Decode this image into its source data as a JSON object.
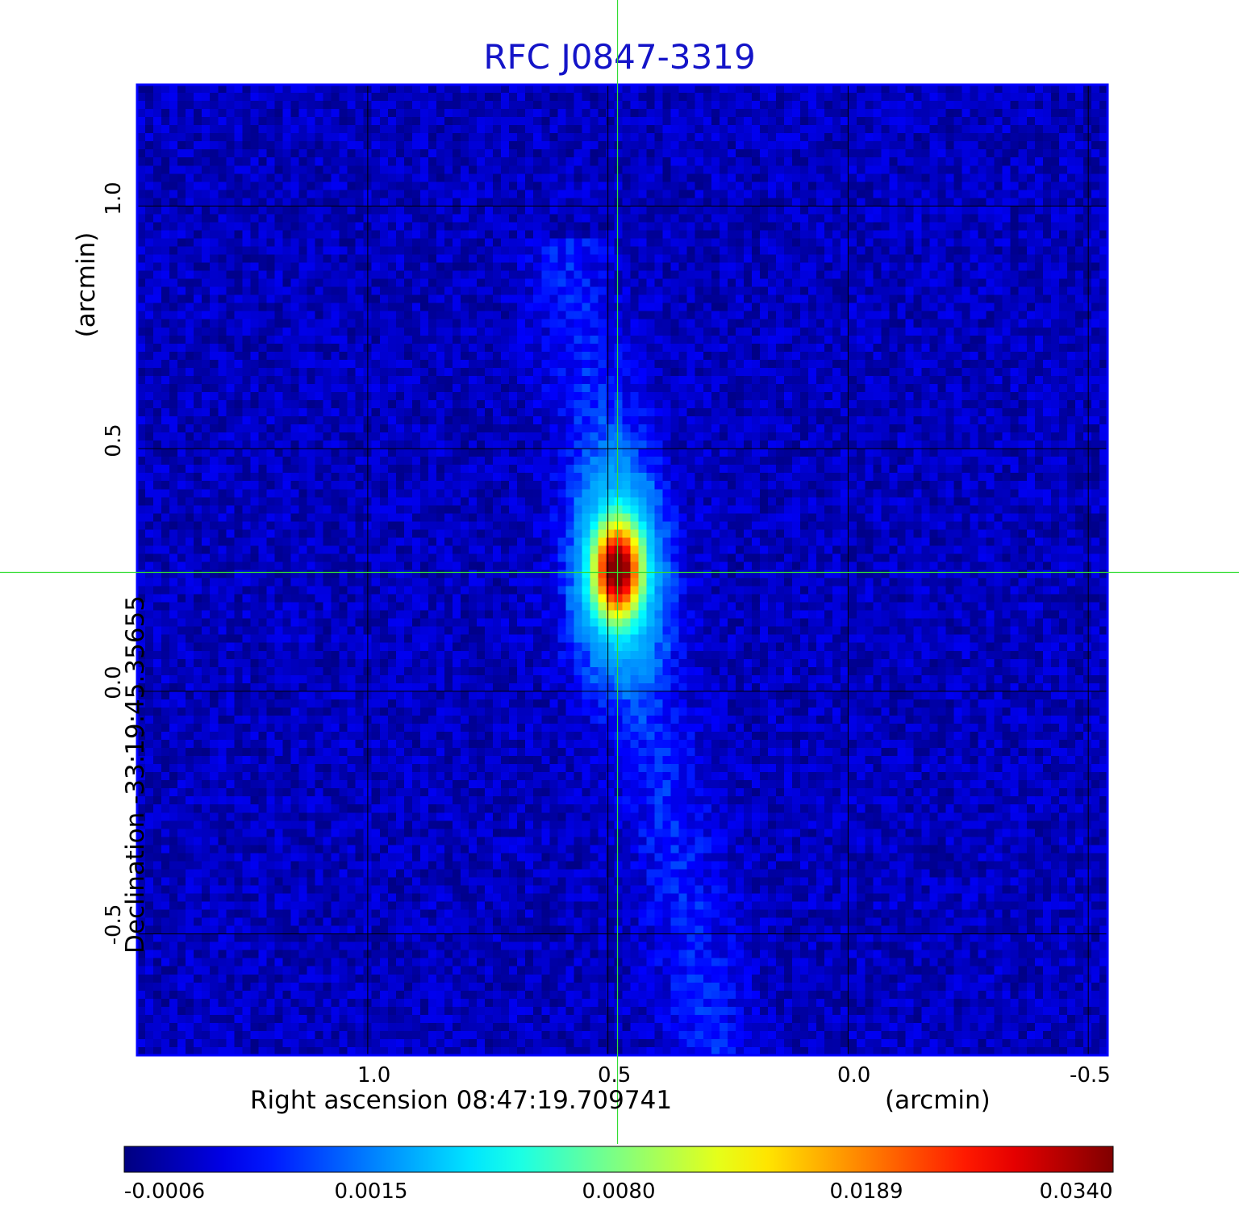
{
  "chart_data": {
    "type": "heatmap",
    "title": "RFC J0847-3319",
    "xlabel": "Right ascension  08:47:19.709741",
    "xunit": "(arcmin)",
    "ylabel": "Declination  -33:19:45.35655",
    "yunit": "(arcmin)",
    "x_ticks": [
      "1.0",
      "0.5",
      "0.0",
      "-0.5"
    ],
    "y_ticks": [
      "1.0",
      "0.5",
      "0.0",
      "-0.5"
    ],
    "x_tick_values": [
      1.0,
      0.5,
      0.0,
      -0.5
    ],
    "y_tick_values": [
      1.0,
      0.5,
      0.0,
      -0.5
    ],
    "xlim": [
      1.48,
      -0.54
    ],
    "ylim": [
      -0.75,
      1.25
    ],
    "grid": true,
    "colormap": "jet",
    "crosshair": {
      "ra_offset": 0.48,
      "dec_offset": 0.245,
      "color": "#33dd33"
    },
    "colorbar": {
      "tick_labels": [
        "-0.0006",
        "0.0015",
        "0.0080",
        "0.0189",
        "0.0340"
      ],
      "tick_values": [
        -0.0006,
        0.0015,
        0.008,
        0.0189,
        0.034
      ]
    },
    "source": {
      "peak": 0.034,
      "ra_offset": 0.48,
      "dec_offset": 0.25,
      "jet_top": [
        0.58,
        0.85
      ],
      "jet_bottom": [
        0.28,
        -0.75
      ]
    },
    "background_level": -0.0001
  },
  "colors": {
    "title": "#1414c8",
    "frame": "#0000ff",
    "grid": "#000000",
    "crosshair": "#33dd33"
  }
}
